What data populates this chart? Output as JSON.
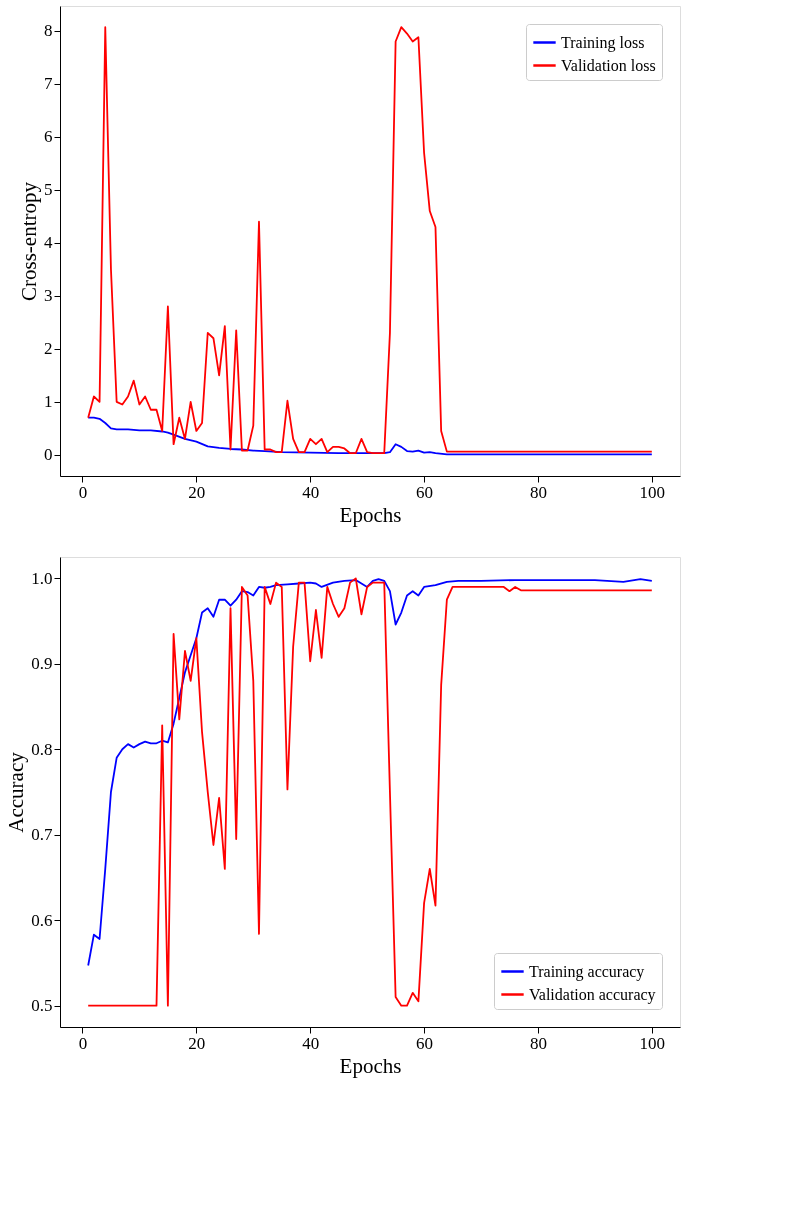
{
  "chart_data": [
    {
      "type": "line",
      "xlabel": "Epochs",
      "ylabel": "Cross-entropy",
      "xlim": [
        -3.95,
        104.95
      ],
      "ylim": [
        -0.4,
        8.47
      ],
      "xticks": [
        0,
        20,
        40,
        60,
        80,
        100
      ],
      "yticks": [
        0,
        1,
        2,
        3,
        4,
        5,
        6,
        7,
        8
      ],
      "grid": false,
      "legend": "top right",
      "line_style": "solid",
      "marker": "none",
      "series": [
        {
          "name": "Training loss",
          "color": "#0000ff",
          "x": [
            1,
            2,
            3,
            4,
            5,
            6,
            8,
            10,
            12,
            14,
            15,
            16,
            18,
            20,
            22,
            24,
            26,
            28,
            30,
            32,
            35,
            40,
            45,
            50,
            53,
            54,
            55,
            56,
            57,
            58,
            59,
            60,
            61,
            62,
            64,
            70,
            80,
            90,
            100
          ],
          "values": [
            0.7,
            0.7,
            0.68,
            0.6,
            0.5,
            0.48,
            0.48,
            0.46,
            0.46,
            0.44,
            0.42,
            0.38,
            0.3,
            0.25,
            0.16,
            0.13,
            0.11,
            0.1,
            0.08,
            0.07,
            0.05,
            0.04,
            0.03,
            0.03,
            0.03,
            0.05,
            0.2,
            0.15,
            0.07,
            0.06,
            0.08,
            0.04,
            0.05,
            0.03,
            0.01,
            0.01,
            0.01,
            0.01,
            0.01
          ]
        },
        {
          "name": "Validation loss",
          "color": "#ff0000",
          "x": [
            1,
            2,
            3,
            4,
            5,
            6,
            7,
            8,
            9,
            10,
            11,
            12,
            13,
            14,
            15,
            16,
            17,
            18,
            19,
            20,
            21,
            22,
            23,
            24,
            25,
            26,
            27,
            28,
            29,
            30,
            31,
            32,
            33,
            34,
            35,
            36,
            37,
            38,
            39,
            40,
            41,
            42,
            43,
            44,
            45,
            46,
            47,
            48,
            49,
            50,
            51,
            52,
            53,
            54,
            55,
            56,
            57,
            58,
            59,
            60,
            61,
            62,
            63,
            64,
            65,
            80,
            100
          ],
          "values": [
            0.7,
            1.1,
            1.0,
            8.07,
            3.5,
            1.0,
            0.95,
            1.1,
            1.4,
            0.95,
            1.1,
            0.85,
            0.85,
            0.45,
            2.8,
            0.2,
            0.7,
            0.3,
            1.0,
            0.45,
            0.6,
            2.3,
            2.2,
            1.5,
            2.43,
            0.1,
            2.35,
            0.08,
            0.08,
            0.55,
            4.4,
            0.1,
            0.1,
            0.05,
            0.05,
            1.02,
            0.3,
            0.05,
            0.05,
            0.3,
            0.2,
            0.3,
            0.05,
            0.15,
            0.15,
            0.12,
            0.03,
            0.03,
            0.3,
            0.05,
            0.03,
            0.03,
            0.03,
            2.3,
            7.8,
            8.07,
            7.95,
            7.8,
            7.88,
            5.7,
            4.6,
            4.3,
            0.45,
            0.06,
            0.06,
            0.06,
            0.06
          ]
        }
      ]
    },
    {
      "type": "line",
      "xlabel": "Epochs",
      "ylabel": "Accuracy",
      "xlim": [
        -3.95,
        104.95
      ],
      "ylim": [
        0.475,
        1.025
      ],
      "xticks": [
        0,
        20,
        40,
        60,
        80,
        100
      ],
      "yticks": [
        0.5,
        0.6,
        0.7,
        0.8,
        0.9,
        {
          "value": 1,
          "label": "1.0"
        }
      ],
      "grid": false,
      "legend": "bottom right",
      "line_style": "solid",
      "marker": "none",
      "series": [
        {
          "name": "Training accuracy",
          "color": "#0000ff",
          "x": [
            1,
            2,
            3,
            4,
            5,
            6,
            7,
            8,
            9,
            10,
            11,
            12,
            13,
            14,
            15,
            16,
            17,
            18,
            19,
            20,
            21,
            22,
            23,
            24,
            25,
            26,
            27,
            28,
            29,
            30,
            31,
            32,
            33,
            34,
            36,
            38,
            40,
            41,
            42,
            44,
            46,
            48,
            50,
            51,
            52,
            53,
            54,
            55,
            56,
            57,
            58,
            59,
            60,
            62,
            64,
            66,
            70,
            76,
            80,
            90,
            95,
            98,
            100
          ],
          "values": [
            0.547,
            0.583,
            0.578,
            0.66,
            0.75,
            0.79,
            0.8,
            0.806,
            0.802,
            0.806,
            0.809,
            0.807,
            0.807,
            0.81,
            0.808,
            0.83,
            0.86,
            0.89,
            0.91,
            0.93,
            0.96,
            0.965,
            0.955,
            0.975,
            0.975,
            0.968,
            0.975,
            0.985,
            0.984,
            0.98,
            0.99,
            0.989,
            0.99,
            0.992,
            0.993,
            0.994,
            0.995,
            0.994,
            0.99,
            0.995,
            0.997,
            0.998,
            0.99,
            0.997,
            0.999,
            0.997,
            0.985,
            0.946,
            0.96,
            0.98,
            0.985,
            0.98,
            0.99,
            0.992,
            0.996,
            0.997,
            0.997,
            0.998,
            0.998,
            0.998,
            0.996,
            0.999,
            0.997
          ]
        },
        {
          "name": "Validation accuracy",
          "color": "#ff0000",
          "x": [
            1,
            13,
            14,
            15,
            16,
            17,
            18,
            19,
            20,
            21,
            22,
            23,
            24,
            25,
            26,
            27,
            28,
            29,
            30,
            31,
            32,
            33,
            34,
            35,
            36,
            37,
            38,
            39,
            40,
            41,
            42,
            43,
            44,
            45,
            46,
            47,
            48,
            49,
            50,
            51,
            52,
            53,
            54,
            55,
            56,
            57,
            58,
            59,
            60,
            61,
            62,
            63,
            64,
            65,
            74,
            75,
            76,
            77,
            100
          ],
          "values": [
            0.5,
            0.5,
            0.828,
            0.5,
            0.935,
            0.835,
            0.915,
            0.88,
            0.93,
            0.82,
            0.75,
            0.688,
            0.743,
            0.66,
            0.965,
            0.695,
            0.99,
            0.98,
            0.88,
            0.584,
            0.99,
            0.97,
            0.995,
            0.99,
            0.753,
            0.92,
            0.995,
            0.995,
            0.903,
            0.963,
            0.907,
            0.99,
            0.97,
            0.955,
            0.965,
            0.995,
            1.0,
            0.958,
            0.99,
            0.995,
            0.995,
            0.995,
            0.75,
            0.51,
            0.5,
            0.5,
            0.515,
            0.505,
            0.62,
            0.66,
            0.617,
            0.875,
            0.975,
            0.99,
            0.99,
            0.985,
            0.99,
            0.986,
            0.986
          ]
        }
      ]
    }
  ]
}
